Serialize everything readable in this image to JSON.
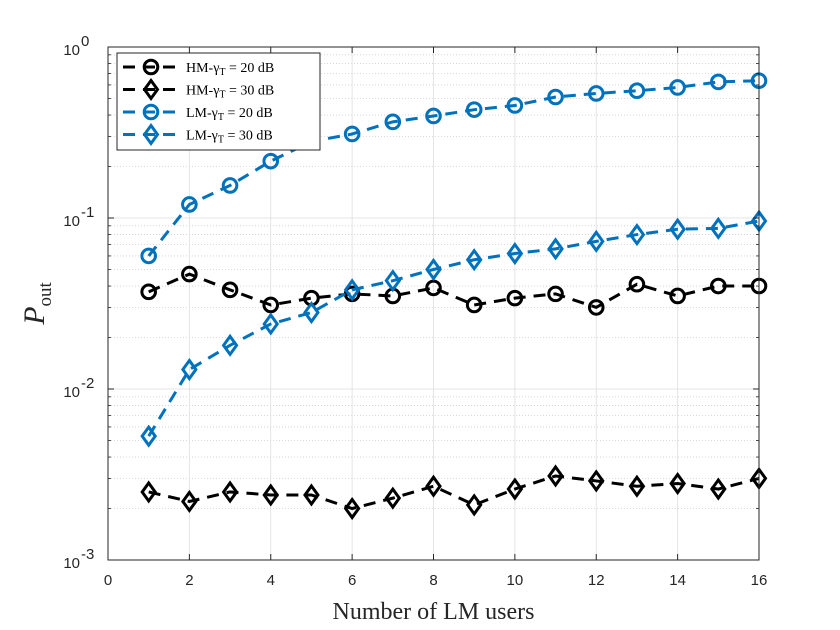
{
  "chart_data": {
    "type": "line",
    "x_scale": "linear",
    "y_scale": "log",
    "xlabel": "Number of LM users",
    "ylabel_main": "P",
    "ylabel_sub": "out",
    "xlim": [
      0,
      16
    ],
    "ylim": [
      0.001,
      1
    ],
    "x_ticks": [
      0,
      2,
      4,
      6,
      8,
      10,
      12,
      14,
      16
    ],
    "y_ticks": [
      {
        "value": 0.001,
        "base": "10",
        "exp": "-3"
      },
      {
        "value": 0.01,
        "base": "10",
        "exp": "-2"
      },
      {
        "value": 0.1,
        "base": "10",
        "exp": "-1"
      },
      {
        "value": 1,
        "base": "10",
        "exp": "0"
      }
    ],
    "grid": true,
    "legend_position": "top-left",
    "x": [
      1,
      2,
      3,
      4,
      5,
      6,
      7,
      8,
      9,
      10,
      11,
      12,
      13,
      14,
      15,
      16
    ],
    "series": [
      {
        "name": "HM-γT = 20 dB",
        "legend_prefix": "HM-γ",
        "legend_sub": "T",
        "legend_suffix": " = 20 dB",
        "color": "#000000",
        "marker": "circle",
        "values": [
          0.037,
          0.047,
          0.038,
          0.031,
          0.034,
          0.036,
          0.035,
          0.039,
          0.031,
          0.034,
          0.036,
          0.03,
          0.041,
          0.035,
          0.04,
          0.04
        ]
      },
      {
        "name": "HM-γT = 30 dB",
        "legend_prefix": "HM-γ",
        "legend_sub": "T",
        "legend_suffix": " = 30 dB",
        "color": "#000000",
        "marker": "diamond",
        "values": [
          0.0025,
          0.0022,
          0.0025,
          0.0024,
          0.0024,
          0.002,
          0.0023,
          0.0027,
          0.0021,
          0.0026,
          0.0031,
          0.0029,
          0.0027,
          0.0028,
          0.0026,
          0.003
        ]
      },
      {
        "name": "LM-γT = 20 dB",
        "legend_prefix": "LM-γ",
        "legend_sub": "T",
        "legend_suffix": " = 20 dB",
        "color": "#0072BD",
        "marker": "circle",
        "values": [
          0.06,
          0.12,
          0.155,
          0.215,
          0.28,
          0.31,
          0.365,
          0.395,
          0.43,
          0.455,
          0.51,
          0.535,
          0.555,
          0.58,
          0.625,
          0.635
        ]
      },
      {
        "name": "LM-γT = 30 dB",
        "legend_prefix": "LM-γ",
        "legend_sub": "T",
        "legend_suffix": " = 30 dB",
        "color": "#0072BD",
        "marker": "diamond",
        "values": [
          0.0053,
          0.013,
          0.018,
          0.024,
          0.028,
          0.038,
          0.043,
          0.05,
          0.057,
          0.062,
          0.066,
          0.073,
          0.08,
          0.086,
          0.087,
          0.096
        ]
      }
    ]
  }
}
